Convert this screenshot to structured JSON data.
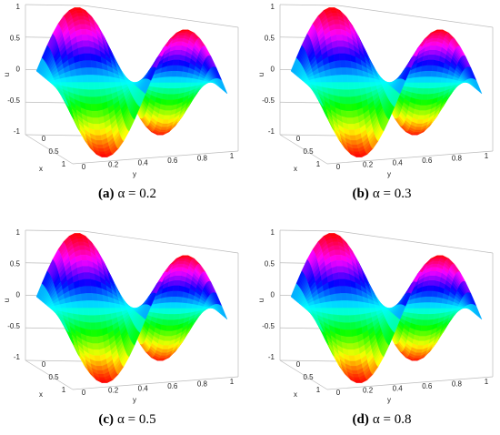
{
  "panels": [
    {
      "label": "(a)",
      "caption": "α = 0.2"
    },
    {
      "label": "(b)",
      "caption": "α = 0.3"
    },
    {
      "label": "(c)",
      "caption": "α = 0.5"
    },
    {
      "label": "(d)",
      "caption": "α = 0.8"
    }
  ],
  "axes": {
    "z_label": "u",
    "x_label": "x",
    "y_label": "y",
    "z_ticks": [
      "1",
      "0.5",
      "0",
      "-0.5",
      "-1"
    ],
    "x_ticks": [
      "0",
      "0.5",
      "1"
    ],
    "y_ticks": [
      "0",
      "0.2",
      "0.4",
      "0.6",
      "0.8",
      "1"
    ]
  }
}
